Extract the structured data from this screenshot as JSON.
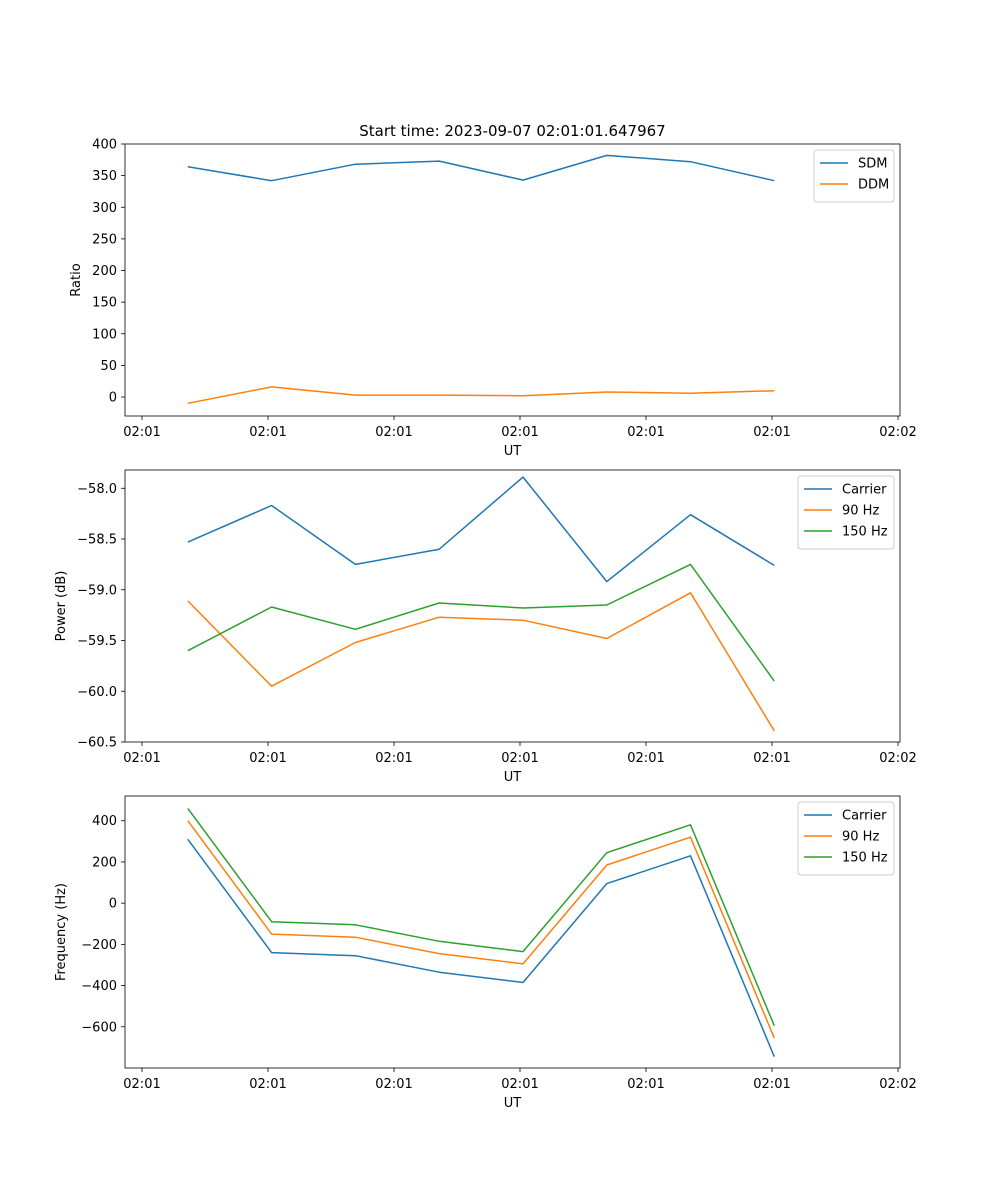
{
  "chart_data": [
    {
      "type": "line",
      "title": "Start time: 2023-09-07 02:01:01.647967",
      "xlabel": "UT",
      "ylabel": "Ratio",
      "xtick_labels": [
        "02:01",
        "02:01",
        "02:01",
        "02:01",
        "02:01",
        "02:01",
        "02:02"
      ],
      "yticks": [
        0,
        50,
        100,
        150,
        200,
        250,
        300,
        350,
        400
      ],
      "ytick_labels": [
        "0",
        "50",
        "100",
        "150",
        "200",
        "250",
        "300",
        "350",
        "400"
      ],
      "ylim": [
        -30,
        400
      ],
      "x": [
        1,
        2,
        3,
        4,
        5,
        6,
        7,
        8
      ],
      "xlim": [
        0.25,
        9.5
      ],
      "legend_position": "top-right",
      "series": [
        {
          "name": "SDM",
          "color": "#1f77b4",
          "values": [
            364,
            342,
            368,
            373,
            343,
            382,
            372,
            342
          ]
        },
        {
          "name": "DDM",
          "color": "#ff7f0e",
          "values": [
            -10,
            16,
            3,
            3,
            2,
            8,
            6,
            10
          ]
        }
      ]
    },
    {
      "type": "line",
      "title": "",
      "xlabel": "UT",
      "ylabel": "Power (dB)",
      "xtick_labels": [
        "02:01",
        "02:01",
        "02:01",
        "02:01",
        "02:01",
        "02:01",
        "02:02"
      ],
      "yticks": [
        -58.0,
        -58.5,
        -59.0,
        -59.5,
        -60.0,
        -60.5
      ],
      "ytick_labels": [
        "−58.0",
        "−58.5",
        "−59.0",
        "−59.5",
        "−60.0",
        "−60.5"
      ],
      "ylim": [
        -60.5,
        -57.82
      ],
      "x": [
        1,
        2,
        3,
        4,
        5,
        6,
        7,
        8
      ],
      "xlim": [
        0.25,
        9.5
      ],
      "legend_position": "top-right",
      "series": [
        {
          "name": "Carrier",
          "color": "#1f77b4",
          "values": [
            -58.53,
            -58.17,
            -58.75,
            -58.6,
            -57.89,
            -58.92,
            -58.26,
            -58.76
          ]
        },
        {
          "name": "90 Hz",
          "color": "#ff7f0e",
          "values": [
            -59.11,
            -59.95,
            -59.52,
            -59.27,
            -59.3,
            -59.48,
            -59.03,
            -60.39
          ]
        },
        {
          "name": "150 Hz",
          "color": "#2ca02c",
          "values": [
            -59.6,
            -59.17,
            -59.39,
            -59.13,
            -59.18,
            -59.15,
            -58.75,
            -59.9
          ]
        }
      ]
    },
    {
      "type": "line",
      "title": "",
      "xlabel": "UT",
      "ylabel": "Frequency (Hz)",
      "xtick_labels": [
        "02:01",
        "02:01",
        "02:01",
        "02:01",
        "02:01",
        "02:01",
        "02:02"
      ],
      "yticks": [
        400,
        200,
        0,
        -200,
        -400,
        -600
      ],
      "ytick_labels": [
        "400",
        "200",
        "0",
        "−200",
        "−400",
        "−600"
      ],
      "ylim": [
        -800,
        520
      ],
      "x": [
        1,
        2,
        3,
        4,
        5,
        6,
        7,
        8
      ],
      "xlim": [
        0.25,
        9.5
      ],
      "legend_position": "top-right",
      "series": [
        {
          "name": "Carrier",
          "color": "#1f77b4",
          "values": [
            310,
            -240,
            -255,
            -335,
            -385,
            95,
            230,
            -745
          ]
        },
        {
          "name": "90 Hz",
          "color": "#ff7f0e",
          "values": [
            400,
            -150,
            -165,
            -245,
            -295,
            185,
            320,
            -655
          ]
        },
        {
          "name": "150 Hz",
          "color": "#2ca02c",
          "values": [
            460,
            -90,
            -105,
            -185,
            -235,
            245,
            380,
            -595
          ]
        }
      ]
    }
  ]
}
